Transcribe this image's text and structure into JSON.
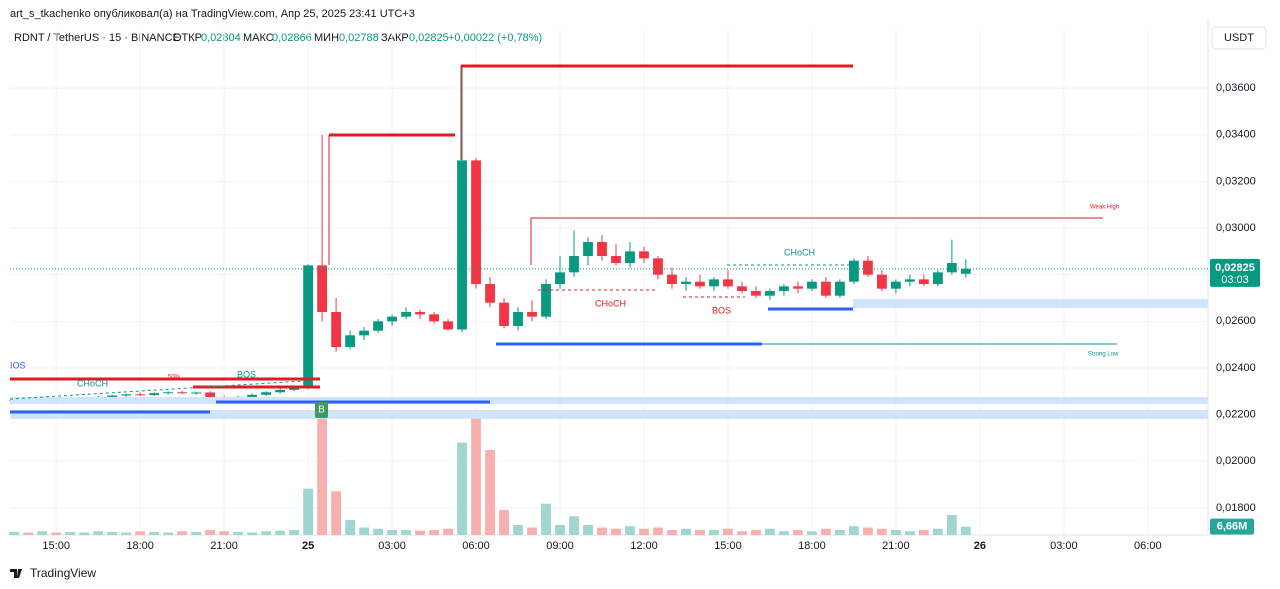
{
  "header": {
    "author": "art_s_tkachenko опубликовал(а) на TradingView.com, Апр 25, 2025 23:41 UTC+3",
    "symbol": "RDNT / TetherUS · 15 · BINANCE",
    "open_label": "ОТКР",
    "open": "0,02804",
    "high_label": "МАКС",
    "high": "0,02866",
    "low_label": "МИН",
    "low": "0,02788",
    "close_label": "ЗАКР",
    "close": "0,02825",
    "change": "+0,00022 (+0,78%)",
    "currency": "USDT",
    "logo": "TradingView"
  },
  "annotations": {
    "weak_high": "Weak High",
    "strong_low": "Strong Low",
    "choch_1": "CHoCH",
    "choch_2": "CHoCH",
    "choch_3": "CHoCH",
    "bos_1": "BOS",
    "bos_2": "BOS",
    "bos_3": "IOS",
    "pct": "50%",
    "buy": "B"
  },
  "chart_data": {
    "type": "candlestick",
    "open": [
      0.0226,
      0.02262,
      0.02255,
      0.02263,
      0.0226,
      0.02266,
      0.0227,
      0.02276,
      0.02282,
      0.02287,
      0.02284,
      0.02292,
      0.02296,
      0.02292,
      0.02295,
      0.02272,
      0.02266,
      0.02276,
      0.02285,
      0.02296,
      0.02306,
      0.02318,
      0.0284,
      0.0264,
      0.0249,
      0.0254,
      0.0256,
      0.026,
      0.0262,
      0.0264,
      0.0263,
      0.026,
      0.02565,
      0.0329,
      0.0276,
      0.0268,
      0.0258,
      0.0264,
      0.0262,
      0.0276,
      0.0281,
      0.0288,
      0.0294,
      0.0288,
      0.0285,
      0.029,
      0.0287,
      0.028,
      0.0276,
      0.0277,
      0.0275,
      0.0278,
      0.0275,
      0.0273,
      0.0271,
      0.0273,
      0.0275,
      0.0274,
      0.0277,
      0.0271,
      0.0277,
      0.0286,
      0.028,
      0.0274,
      0.0277,
      0.0278,
      0.0276,
      0.0281,
      0.02804
    ],
    "high": [
      0.02268,
      0.02266,
      0.02265,
      0.0227,
      0.02268,
      0.02275,
      0.0228,
      0.02285,
      0.0229,
      0.02295,
      0.02296,
      0.023,
      0.02302,
      0.02298,
      0.023,
      0.02282,
      0.0228,
      0.0229,
      0.023,
      0.02312,
      0.02322,
      0.02845,
      0.034,
      0.027,
      0.0256,
      0.02575,
      0.0261,
      0.0263,
      0.0266,
      0.0265,
      0.0264,
      0.0261,
      0.037,
      0.033,
      0.0279,
      0.027,
      0.0266,
      0.0269,
      0.0278,
      0.0288,
      0.0299,
      0.0296,
      0.0297,
      0.0293,
      0.0294,
      0.0292,
      0.0288,
      0.0283,
      0.0279,
      0.028,
      0.0279,
      0.0282,
      0.0277,
      0.0275,
      0.0274,
      0.0276,
      0.0277,
      0.0278,
      0.0279,
      0.0278,
      0.0287,
      0.0288,
      0.0282,
      0.0278,
      0.028,
      0.028,
      0.0282,
      0.0295,
      0.02866
    ],
    "low": [
      0.02255,
      0.0225,
      0.0225,
      0.02258,
      0.02252,
      0.02262,
      0.02265,
      0.0227,
      0.02276,
      0.0228,
      0.0228,
      0.02286,
      0.02288,
      0.02285,
      0.02262,
      0.0226,
      0.02262,
      0.02272,
      0.0228,
      0.0229,
      0.023,
      0.0231,
      0.026,
      0.0247,
      0.0248,
      0.0252,
      0.0255,
      0.0258,
      0.0261,
      0.0261,
      0.0259,
      0.0256,
      0.02555,
      0.0274,
      0.0266,
      0.0257,
      0.0256,
      0.026,
      0.0261,
      0.0274,
      0.0279,
      0.0284,
      0.0286,
      0.0284,
      0.0283,
      0.0285,
      0.0278,
      0.0274,
      0.0273,
      0.0274,
      0.0273,
      0.0274,
      0.0272,
      0.027,
      0.0269,
      0.0271,
      0.0272,
      0.0273,
      0.027,
      0.027,
      0.0276,
      0.0279,
      0.0273,
      0.0272,
      0.0275,
      0.0275,
      0.0275,
      0.028,
      0.02788
    ],
    "close": [
      0.02262,
      0.02255,
      0.02263,
      0.0226,
      0.02266,
      0.0227,
      0.02276,
      0.02282,
      0.02287,
      0.02284,
      0.02292,
      0.02296,
      0.02292,
      0.02295,
      0.02272,
      0.02266,
      0.02276,
      0.02285,
      0.02296,
      0.02306,
      0.02318,
      0.0284,
      0.0264,
      0.0249,
      0.0254,
      0.0256,
      0.026,
      0.0262,
      0.0264,
      0.0263,
      0.026,
      0.02565,
      0.0329,
      0.0276,
      0.0268,
      0.0258,
      0.0264,
      0.0262,
      0.0276,
      0.0281,
      0.0288,
      0.0294,
      0.0288,
      0.0285,
      0.029,
      0.0287,
      0.028,
      0.0276,
      0.0277,
      0.0275,
      0.0278,
      0.0275,
      0.0273,
      0.0271,
      0.0273,
      0.0275,
      0.0274,
      0.0277,
      0.0271,
      0.0277,
      0.0286,
      0.028,
      0.0274,
      0.0277,
      0.0278,
      0.0276,
      0.0281,
      0.0285,
      0.02825
    ],
    "volume": [
      2.5,
      2,
      3,
      2,
      2.5,
      2,
      3,
      2.5,
      2,
      3,
      2.5,
      2,
      3,
      2.5,
      4,
      3,
      2.5,
      2,
      3,
      3.5,
      4,
      37,
      100,
      35,
      12,
      6,
      5,
      4,
      4,
      3.5,
      4,
      5,
      74,
      100,
      68,
      20,
      8,
      6,
      25,
      8,
      15,
      8,
      6,
      5,
      7,
      5,
      6,
      4,
      5,
      4,
      4,
      5,
      3,
      4,
      5,
      3,
      4,
      3,
      5,
      4,
      7,
      6,
      5,
      4,
      3,
      4,
      5,
      16,
      6.66
    ],
    "last_price_label": "0,02825",
    "countdown": "03:03",
    "last_volume_label": "6,66M",
    "up_color": "#089981",
    "down_color": "#f23645",
    "volume_up_color": "#9fd6cf",
    "volume_down_color": "#f7b0ae",
    "xlim": [
      -0.3,
      85.3
    ],
    "xticks": [
      {
        "value": 3,
        "label": "15:00"
      },
      {
        "value": 9,
        "label": "18:00"
      },
      {
        "value": 15,
        "label": "21:00"
      },
      {
        "value": 21,
        "label": "25"
      },
      {
        "value": 27,
        "label": "03:00"
      },
      {
        "value": 33,
        "label": "06:00"
      },
      {
        "value": 39,
        "label": "09:00"
      },
      {
        "value": 45,
        "label": "12:00"
      },
      {
        "value": 51,
        "label": "15:00"
      },
      {
        "value": 57,
        "label": "18:00"
      },
      {
        "value": 63,
        "label": "21:00"
      },
      {
        "value": 69,
        "label": "26"
      },
      {
        "value": 75,
        "label": "03:00"
      },
      {
        "value": 81,
        "label": "06:00"
      }
    ],
    "ylim": [
      0.01684,
      0.03849
    ],
    "yticks": [
      {
        "value": 0.018,
        "label": "0,01800"
      },
      {
        "value": 0.02,
        "label": "0,02000"
      },
      {
        "value": 0.022,
        "label": "0,02200"
      },
      {
        "value": 0.024,
        "label": "0,02400"
      },
      {
        "value": 0.026,
        "label": "0,02600"
      },
      {
        "value": 0.028,
        "label": "0,02800"
      },
      {
        "value": 0.03,
        "label": "0,03000"
      },
      {
        "value": 0.032,
        "label": "0,03200"
      },
      {
        "value": 0.034,
        "label": "0,03400"
      },
      {
        "value": 0.036,
        "label": "0,03600"
      }
    ],
    "volume_lim": [
      0,
      100
    ]
  }
}
